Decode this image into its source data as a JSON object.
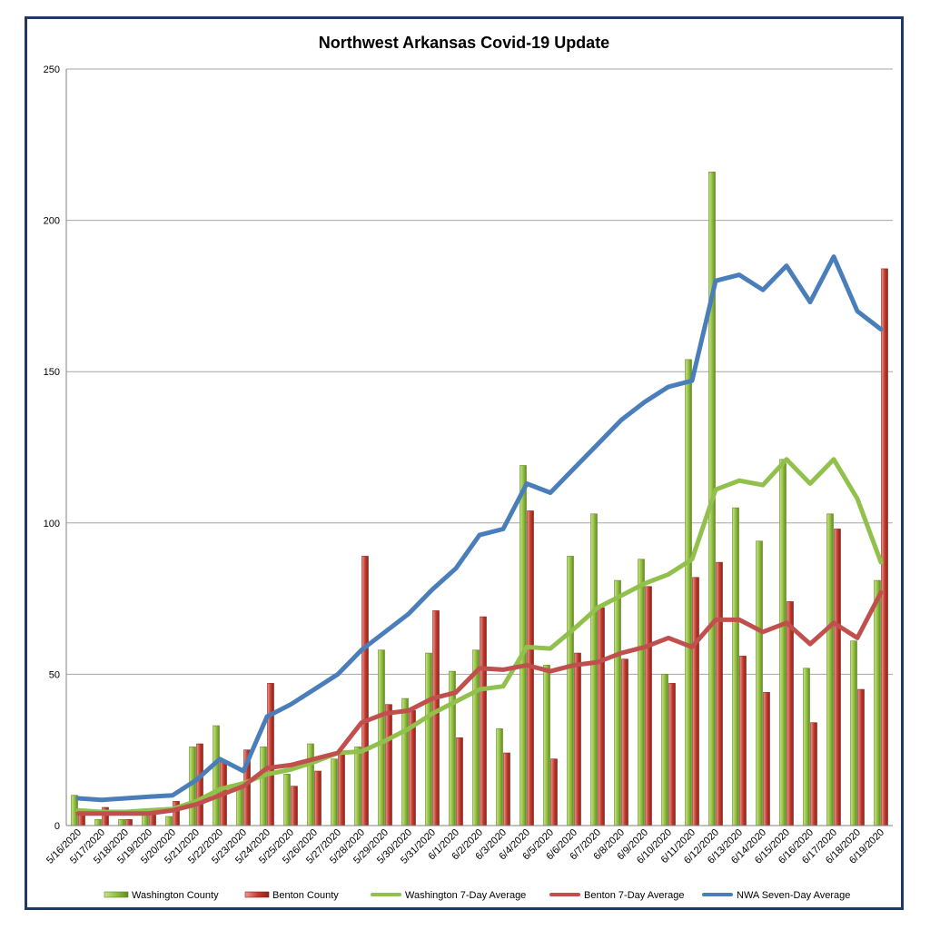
{
  "chart_data": {
    "type": "bar",
    "title": "Northwest Arkansas Covid-19 Update",
    "xlabel": "",
    "ylabel": "",
    "ylim": [
      0,
      250
    ],
    "yticks": [
      0,
      50,
      100,
      150,
      200,
      250
    ],
    "grid": true,
    "legend_position": "bottom",
    "categories": [
      "5/16/2020",
      "5/17/2020",
      "5/18/2020",
      "5/19/2020",
      "5/20/2020",
      "5/21/2020",
      "5/22/2020",
      "5/23/2020",
      "5/24/2020",
      "5/25/2020",
      "5/26/2020",
      "5/27/2020",
      "5/28/2020",
      "5/29/2020",
      "5/30/2020",
      "5/31/2020",
      "6/1/2020",
      "6/2/2020",
      "6/3/2020",
      "6/4/2020",
      "6/5/2020",
      "6/6/2020",
      "6/7/2020",
      "6/8/2020",
      "6/9/2020",
      "6/10/2020",
      "6/11/2020",
      "6/12/2020",
      "6/13/2020",
      "6/14/2020",
      "6/15/2020",
      "6/16/2020",
      "6/17/2020",
      "6/18/2020",
      "6/19/2020"
    ],
    "series": [
      {
        "name": "Washington County",
        "kind": "bar",
        "color": "#8fbc3c",
        "values": [
          10,
          2,
          2,
          4,
          3,
          26,
          33,
          14,
          26,
          17,
          27,
          22,
          26,
          58,
          42,
          57,
          51,
          58,
          32,
          119,
          53,
          89,
          103,
          81,
          88,
          50,
          154,
          216,
          105,
          94,
          121,
          52,
          103,
          61,
          81
        ]
      },
      {
        "name": "Benton County",
        "kind": "bar",
        "color": "#c0392b",
        "values": [
          5,
          6,
          2,
          5,
          8,
          27,
          21,
          25,
          47,
          13,
          18,
          24,
          89,
          40,
          38,
          71,
          29,
          69,
          24,
          104,
          22,
          57,
          72,
          55,
          79,
          47,
          82,
          87,
          56,
          44,
          74,
          34,
          98,
          45,
          184
        ]
      },
      {
        "name": "Washington 7-Day Average",
        "kind": "line",
        "color": "#92c04c",
        "values": [
          5,
          4.5,
          4.5,
          5,
          5.5,
          8,
          12,
          14,
          17,
          18.5,
          21,
          24,
          24.5,
          28,
          32,
          37,
          41,
          45,
          46,
          59,
          58.5,
          65,
          72,
          76,
          80,
          83,
          88,
          111,
          114,
          112.5,
          121,
          113,
          121,
          108,
          87
        ]
      },
      {
        "name": "Benton 7-Day Average",
        "kind": "line",
        "color": "#c0504d",
        "values": [
          4,
          4,
          4,
          4,
          5,
          7,
          10,
          13,
          19,
          20,
          22,
          24,
          34,
          37,
          38,
          42,
          44,
          52,
          51.5,
          53,
          51,
          53,
          54,
          57,
          59,
          62,
          59,
          68,
          68,
          64,
          67,
          60,
          67,
          62,
          77
        ]
      },
      {
        "name": "NWA Seven-Day Average",
        "kind": "line",
        "color": "#4a7ebb",
        "values": [
          9,
          8.5,
          9,
          9.5,
          10,
          15,
          22,
          18,
          36,
          40,
          45,
          50,
          58,
          64,
          70,
          78,
          85,
          96,
          98,
          113,
          110,
          118,
          126,
          134,
          140,
          145,
          147,
          180,
          182,
          177,
          185,
          173,
          188,
          170,
          164
        ]
      }
    ]
  }
}
